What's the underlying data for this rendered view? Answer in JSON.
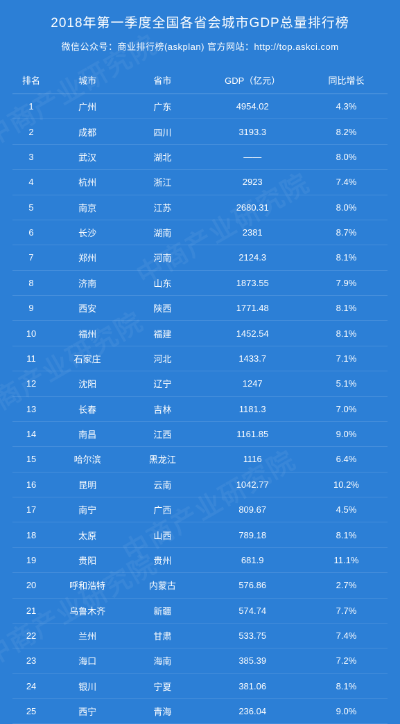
{
  "header": {
    "title": "2018年第一季度全国各省会城市GDP总量排行榜",
    "subtitle_prefix": "微信公众号：商业排行榜(askplan)",
    "subtitle_site_label": "官方网站：",
    "subtitle_site_url": "http://top.askci.com"
  },
  "table": {
    "columns": [
      "排名",
      "城市",
      "省市",
      "GDP（亿元）",
      "同比增长"
    ],
    "rows": [
      [
        "1",
        "广州",
        "广东",
        "4954.02",
        "4.3%"
      ],
      [
        "2",
        "成都",
        "四川",
        "3193.3",
        "8.2%"
      ],
      [
        "3",
        "武汉",
        "湖北",
        "——",
        "8.0%"
      ],
      [
        "4",
        "杭州",
        "浙江",
        "2923",
        "7.4%"
      ],
      [
        "5",
        "南京",
        "江苏",
        "2680.31",
        "8.0%"
      ],
      [
        "6",
        "长沙",
        "湖南",
        "2381",
        "8.7%"
      ],
      [
        "7",
        "郑州",
        "河南",
        "2124.3",
        "8.1%"
      ],
      [
        "8",
        "济南",
        "山东",
        "1873.55",
        "7.9%"
      ],
      [
        "9",
        "西安",
        "陕西",
        "1771.48",
        "8.1%"
      ],
      [
        "10",
        "福州",
        "福建",
        "1452.54",
        "8.1%"
      ],
      [
        "11",
        "石家庄",
        "河北",
        "1433.7",
        "7.1%"
      ],
      [
        "12",
        "沈阳",
        "辽宁",
        "1247",
        "5.1%"
      ],
      [
        "13",
        "长春",
        "吉林",
        "1181.3",
        "7.0%"
      ],
      [
        "14",
        "南昌",
        "江西",
        "1161.85",
        "9.0%"
      ],
      [
        "15",
        "哈尔滨",
        "黑龙江",
        "1116",
        "6.4%"
      ],
      [
        "16",
        "昆明",
        "云南",
        "1042.77",
        "10.2%"
      ],
      [
        "17",
        "南宁",
        "广西",
        "809.67",
        "4.5%"
      ],
      [
        "18",
        "太原",
        "山西",
        "789.18",
        "8.1%"
      ],
      [
        "19",
        "贵阳",
        "贵州",
        "681.9",
        "11.1%"
      ],
      [
        "20",
        "呼和浩特",
        "内蒙古",
        "576.86",
        "2.7%"
      ],
      [
        "21",
        "乌鲁木齐",
        "新疆",
        "574.74",
        "7.7%"
      ],
      [
        "22",
        "兰州",
        "甘肃",
        "533.75",
        "7.4%"
      ],
      [
        "23",
        "海口",
        "海南",
        "385.39",
        "7.2%"
      ],
      [
        "24",
        "银川",
        "宁夏",
        "381.06",
        "8.1%"
      ],
      [
        "25",
        "西宁",
        "青海",
        "236.04",
        "9.0%"
      ]
    ]
  },
  "watermark_text": "中商产业研究院",
  "style": {
    "background_color": "#2c7fd6",
    "text_color": "#ffffff",
    "row_border_color": "rgba(255,255,255,0.12)",
    "header_border_color": "rgba(255,255,255,0.25)",
    "title_fontsize": 19,
    "subtitle_fontsize": 13,
    "cell_fontsize": 13,
    "watermark_color": "rgba(255,255,255,0.06)",
    "watermark_fontsize": 38,
    "watermark_rotation_deg": -30
  }
}
